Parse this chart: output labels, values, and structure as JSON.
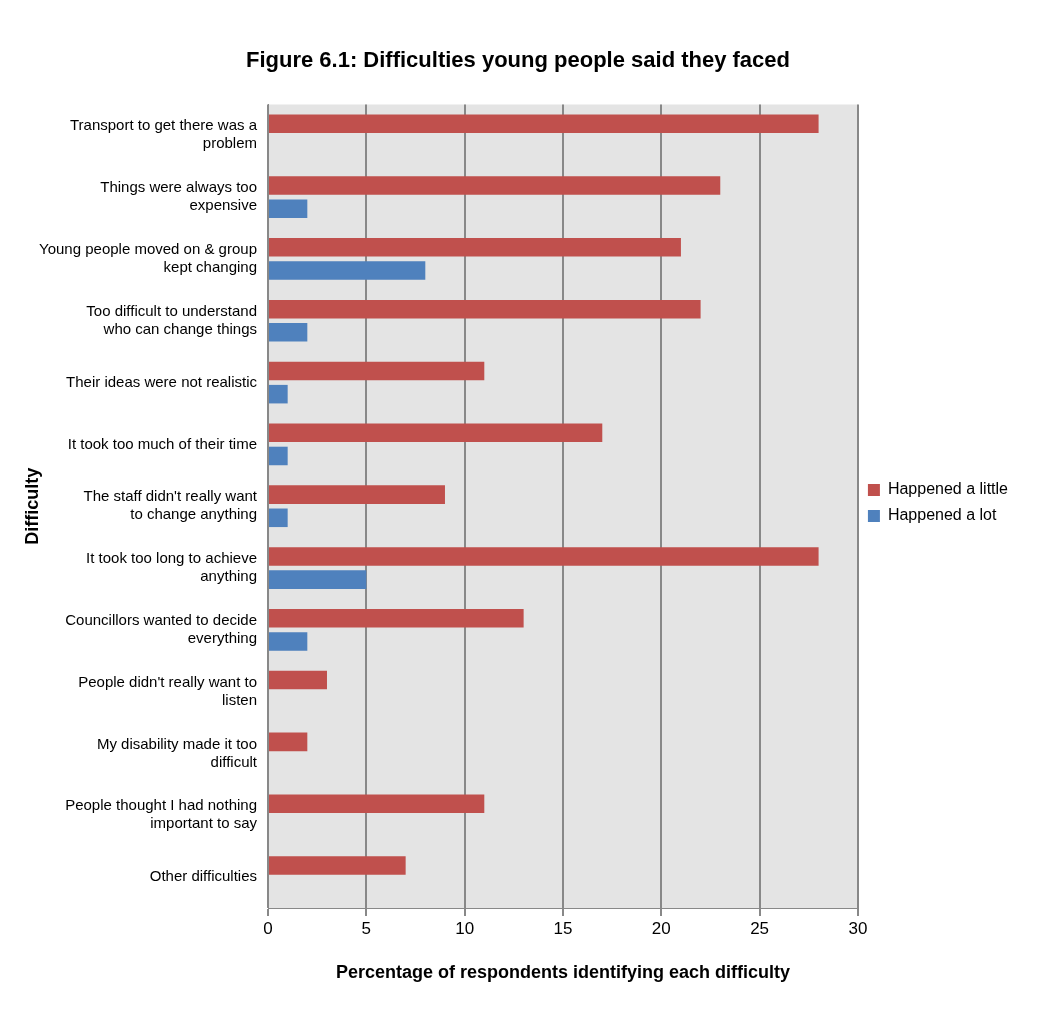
{
  "chart_data": {
    "type": "bar",
    "orientation": "horizontal",
    "title": "Figure 6.1: Difficulties young people said they faced",
    "ylabel": "Difficulty",
    "xlabel": "Percentage of respondents identifying each difficulty",
    "categories": [
      "Transport to get there was a problem",
      "Things were always too expensive",
      "Young people moved on & group kept changing",
      "Too difficult to understand who can change things",
      "Their ideas were not realistic",
      "It took too much of their time",
      "The staff didn't really want to change anything",
      "It took too long to achieve anything",
      "Councillors wanted to decide everything",
      "People didn't really want to listen",
      "My disability made it too difficult",
      "People thought I had nothing important to say",
      "Other difficulties"
    ],
    "series": [
      {
        "name": "Happened a little",
        "color": "#c0504d",
        "values": [
          28,
          23,
          21,
          22,
          11,
          17,
          9,
          28,
          13,
          3,
          2,
          11,
          7
        ]
      },
      {
        "name": "Happened a lot",
        "color": "#4f81bd",
        "values": [
          0,
          2,
          8,
          2,
          1,
          1,
          1,
          5,
          2,
          0,
          0,
          0,
          0
        ]
      }
    ],
    "xlim": [
      0,
      30
    ],
    "xticks": [
      0,
      5,
      10,
      15,
      20,
      25,
      30
    ],
    "grid": "x",
    "legend": "right"
  }
}
